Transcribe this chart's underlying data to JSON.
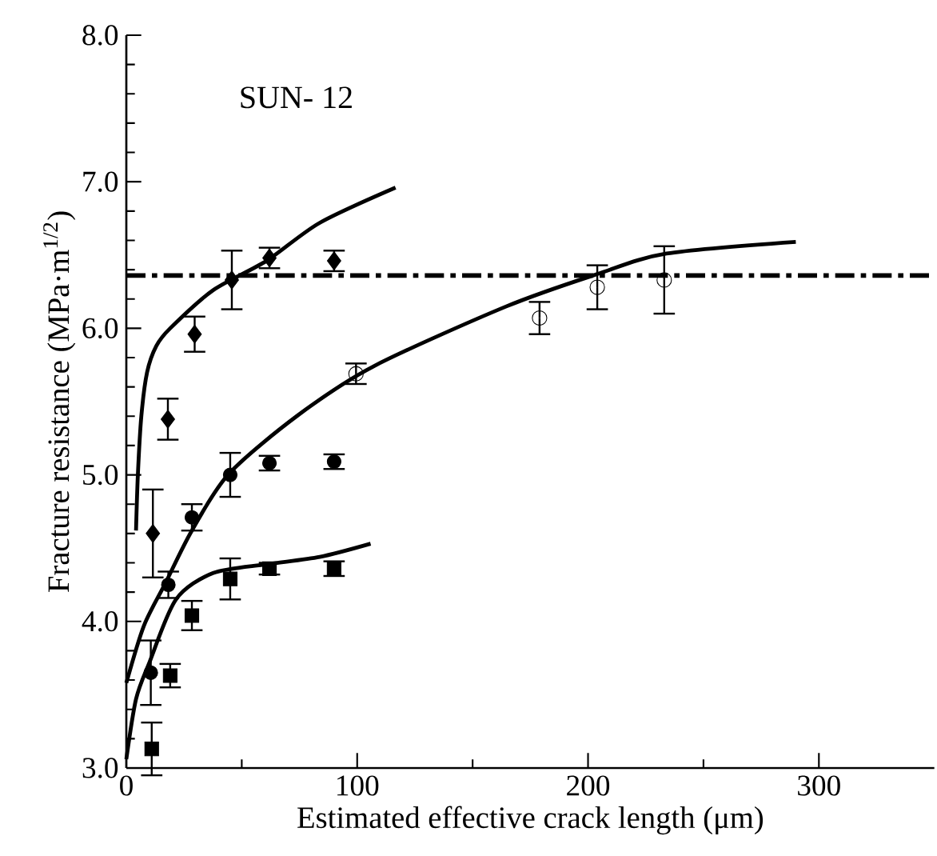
{
  "chart_data": {
    "type": "scatter",
    "title": "SUN- 12",
    "xlabel": "Estimated effective crack length (μm)",
    "ylabel": "Fracture resistance (MPa·m$^{1/2}$)",
    "xlim": [
      0,
      350
    ],
    "xticks": [
      0,
      100,
      200,
      300
    ],
    "ylim": [
      3,
      8
    ],
    "yticks": [
      {
        "value": 3,
        "label": "3.0"
      },
      {
        "value": 4,
        "label": "4.0"
      },
      {
        "value": 5,
        "label": "5.0"
      },
      {
        "value": 6,
        "label": "6.0"
      },
      {
        "value": 7,
        "label": "7.0"
      },
      {
        "value": 8,
        "label": "8.0"
      }
    ],
    "ref_lines": [
      {
        "axis": "y",
        "value": 6.36,
        "color": "#000000",
        "line_style": "dashdot"
      }
    ],
    "series": [
      {
        "marker": "diamond",
        "color": "#000000",
        "x": [
          11.5,
          18,
          29.6,
          45.7,
          62,
          90
        ],
        "values": [
          4.6,
          5.38,
          5.96,
          6.33,
          6.48,
          6.46
        ],
        "errors": [
          0.3,
          0.14,
          0.12,
          0.2,
          0.07,
          0.07
        ]
      },
      {
        "marker": "circle",
        "color": "#000000",
        "x": [
          10.6,
          18.2,
          28.4,
          45,
          62,
          90
        ],
        "values": [
          3.65,
          4.25,
          4.71,
          5.0,
          5.08,
          5.09
        ],
        "errors": [
          0.22,
          0.09,
          0.09,
          0.15,
          0.05,
          0.05
        ]
      },
      {
        "marker": "square",
        "color": "#000000",
        "x": [
          11,
          19,
          28.4,
          45,
          62,
          90
        ],
        "values": [
          3.13,
          3.63,
          4.04,
          4.29,
          4.36,
          4.36
        ],
        "errors": [
          0.18,
          0.08,
          0.1,
          0.14,
          0.04,
          0.05
        ]
      },
      {
        "marker": "open circle",
        "color": "#000000",
        "x": [
          99.5,
          179,
          204,
          233
        ],
        "values": [
          5.69,
          6.07,
          6.28,
          6.33
        ],
        "errors": [
          0.07,
          0.11,
          0.15,
          0.23
        ]
      },
      {
        "type": "line",
        "marker": "none",
        "color": "#000000",
        "x": [
          4.2,
          5,
          6.5,
          9,
          13,
          19,
          37.6,
          60.7,
          83.8,
          116.6
        ],
        "values": [
          4.62,
          5.0,
          5.4,
          5.7,
          5.88,
          6.0,
          6.26,
          6.46,
          6.72,
          6.96
        ]
      },
      {
        "type": "line",
        "marker": "none",
        "color": "#000000",
        "x": [
          0,
          7.6,
          16.9,
          28.4,
          44.6,
          74.6,
          107,
          164.7,
          204,
          234,
          290
        ],
        "values": [
          3.58,
          3.97,
          4.26,
          4.62,
          5.01,
          5.41,
          5.74,
          6.15,
          6.37,
          6.51,
          6.59
        ]
      },
      {
        "type": "line",
        "marker": "none",
        "color": "#000000",
        "x": [
          0,
          4.2,
          10,
          21.5,
          37.6,
          60.7,
          83.8,
          105.8
        ],
        "values": [
          3.06,
          3.47,
          3.72,
          4.15,
          4.33,
          4.39,
          4.44,
          4.53
        ]
      }
    ]
  }
}
